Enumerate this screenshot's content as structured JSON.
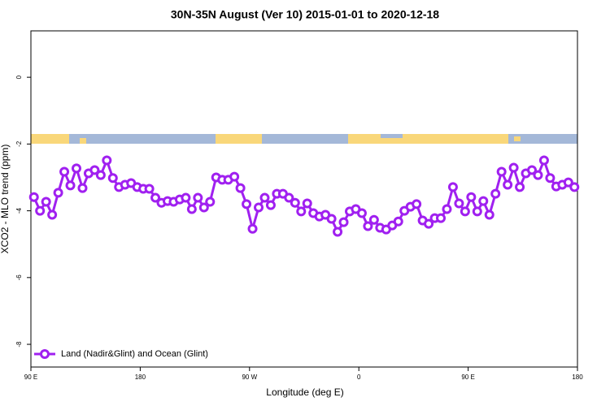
{
  "chart_data": {
    "type": "line",
    "title": "30N-35N August (Ver 10)   2015-01-01 to 2020-12-18",
    "x_label": "Longitude (deg E)",
    "y_label": "XCO2 - MLO trend (ppm)",
    "xlim": [
      90,
      540
    ],
    "ylim": [
      -8.68,
      1.39
    ],
    "xticks": [
      {
        "value": 90,
        "label": "90 E"
      },
      180,
      {
        "value": 270,
        "label": "90 W"
      },
      {
        "value": 360,
        "label": "0"
      },
      {
        "value": 450,
        "label": "90 E"
      },
      {
        "value": 540,
        "label": "180"
      }
    ],
    "yticks": [
      0,
      -2,
      -4,
      -6,
      -8
    ],
    "legend_position": "bottom-left",
    "series": [
      {
        "name": "Land (Nadir&Glint) and Ocean (Glint)",
        "color": "#a020f0",
        "x": [
          92.5,
          97.5,
          102.5,
          107.5,
          112.5,
          117.5,
          122.5,
          127.5,
          132.5,
          137.5,
          142.5,
          147.5,
          152.5,
          157.5,
          162.5,
          167.5,
          172.5,
          177.5,
          182.5,
          187.5,
          192.5,
          197.5,
          202.5,
          207.5,
          212.5,
          217.5,
          222.5,
          227.5,
          232.5,
          237.5,
          242.5,
          247.5,
          252.5,
          257.5,
          262.5,
          267.5,
          272.5,
          277.5,
          282.5,
          287.5,
          292.5,
          297.5,
          302.5,
          307.5,
          312.5,
          317.5,
          322.5,
          327.5,
          332.5,
          337.5,
          342.5,
          347.5,
          352.5,
          357.5,
          362.5,
          367.5,
          372.5,
          377.5,
          382.5,
          387.5,
          392.5,
          397.5,
          402.5,
          407.5,
          412.5,
          417.5,
          422.5,
          427.5,
          432.5,
          437.5,
          442.5,
          447.5,
          452.5,
          457.5,
          462.5,
          467.5,
          472.5,
          477.5,
          482.5,
          487.5,
          492.5,
          497.5,
          502.5,
          507.5,
          512.5,
          517.5,
          522.5,
          527.5,
          532.5,
          537.5
        ],
        "values": [
          -3.59,
          -4.0,
          -3.73,
          -4.12,
          -3.46,
          -2.83,
          -3.24,
          -2.73,
          -3.32,
          -2.88,
          -2.78,
          -2.93,
          -2.49,
          -3.02,
          -3.29,
          -3.22,
          -3.17,
          -3.29,
          -3.34,
          -3.34,
          -3.61,
          -3.76,
          -3.71,
          -3.73,
          -3.66,
          -3.61,
          -3.95,
          -3.61,
          -3.9,
          -3.73,
          -3.0,
          -3.07,
          -3.07,
          -2.98,
          -3.32,
          -3.8,
          -4.54,
          -3.9,
          -3.61,
          -3.83,
          -3.49,
          -3.49,
          -3.61,
          -3.76,
          -4.02,
          -3.78,
          -4.07,
          -4.17,
          -4.12,
          -4.24,
          -4.63,
          -4.34,
          -4.02,
          -3.95,
          -4.07,
          -4.46,
          -4.27,
          -4.51,
          -4.56,
          -4.44,
          -4.32,
          -4.0,
          -3.88,
          -3.8,
          -4.29,
          -4.39,
          -4.22,
          -4.22,
          -3.95,
          -3.29,
          -3.78,
          -4.02,
          -3.59,
          -4.02,
          -3.71,
          -4.12,
          -3.49,
          -2.83,
          -3.22,
          -2.71,
          -3.29,
          -2.88,
          -2.78,
          -2.93,
          -2.49,
          -3.02,
          -3.27,
          -3.22,
          -3.15,
          -3.29
        ]
      }
    ]
  }
}
